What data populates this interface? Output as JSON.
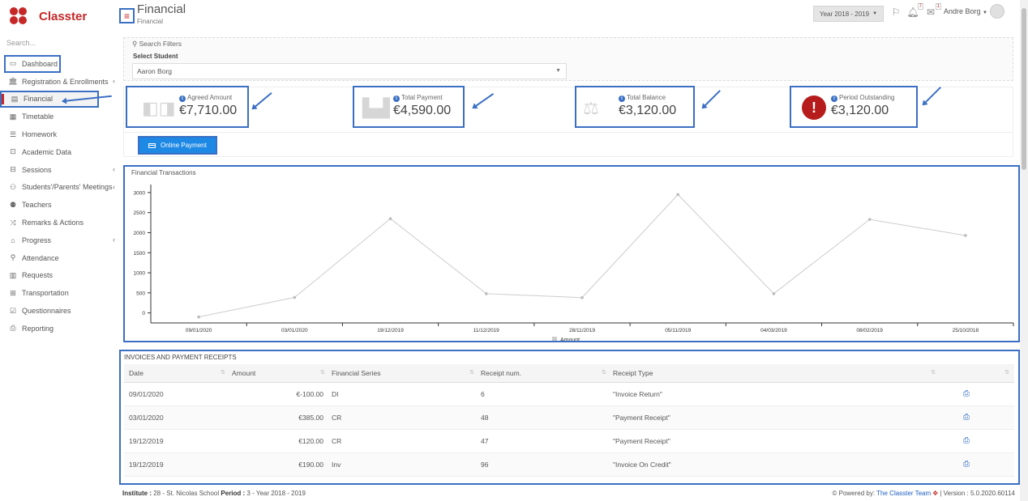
{
  "app": {
    "name": "Classter"
  },
  "sidebar": {
    "search_placeholder": "Search...",
    "items": [
      {
        "label": "Dashboard",
        "icon": "laptop-icon"
      },
      {
        "label": "Registration & Enrollments",
        "icon": "bank-icon"
      },
      {
        "label": "Financial",
        "icon": "money-icon"
      },
      {
        "label": "Timetable",
        "icon": "calendar-icon"
      },
      {
        "label": "Homework",
        "icon": "list-icon"
      },
      {
        "label": "Academic Data",
        "icon": "chart-icon"
      },
      {
        "label": "Sessions",
        "icon": "chalkboard-icon"
      },
      {
        "label": "Students'/Parents' Meetings",
        "icon": "user-clock-icon"
      },
      {
        "label": "Teachers",
        "icon": "users-icon"
      },
      {
        "label": "Remarks & Actions",
        "icon": "shuffle-icon"
      },
      {
        "label": "Progress",
        "icon": "graduation-cap-icon"
      },
      {
        "label": "Attendance",
        "icon": "user-x-icon"
      },
      {
        "label": "Requests",
        "icon": "document-icon"
      },
      {
        "label": "Transportation",
        "icon": "bus-icon"
      },
      {
        "label": "Questionnaires",
        "icon": "checkbox-icon"
      },
      {
        "label": "Reporting",
        "icon": "print-icon"
      }
    ]
  },
  "header": {
    "title": "Financial",
    "subtitle": "Financial",
    "year": "Year 2018 - 2019",
    "notifications_count": "7",
    "messages_count": "1",
    "user": "Andre Borg"
  },
  "filters": {
    "legend": "Search Filters",
    "label": "Select Student",
    "value": "Aaron Borg"
  },
  "stats": {
    "agreed": {
      "title": "Agreed Amount",
      "value": "€7,710.00"
    },
    "payment": {
      "title": "Total Payment",
      "value": "€4,590.00"
    },
    "balance": {
      "title": "Total Balance",
      "value": "€3,120.00"
    },
    "outstanding": {
      "title": "Period Outstanding",
      "value": "€3,120.00"
    }
  },
  "online_payment_label": "Online Payment",
  "chart_data": {
    "type": "line",
    "title": "Financial Transactions",
    "categories": [
      "09/01/2020",
      "03/01/2020",
      "19/12/2019",
      "11/12/2019",
      "28/11/2019",
      "05/11/2019",
      "04/03/2019",
      "08/02/2019",
      "25/10/2018"
    ],
    "series": [
      {
        "name": "Amount",
        "values": [
          -100,
          385,
          2350,
          480,
          380,
          2950,
          480,
          2330,
          1930
        ]
      }
    ],
    "yticks": [
      0,
      500,
      1000,
      1500,
      2000,
      2500,
      3000
    ],
    "ylim": [
      -250,
      3200
    ],
    "legend": "bottom",
    "color": "#cccccc"
  },
  "invoices": {
    "title": "INVOICES AND PAYMENT RECEIPTS",
    "columns": [
      "Date",
      "Amount",
      "Financial Series",
      "Receipt num.",
      "Receipt Type",
      ""
    ],
    "rows": [
      {
        "date": "09/01/2020",
        "amount": "€-100.00",
        "series": "DI",
        "num": "6",
        "type": "\"Invoice Return\""
      },
      {
        "date": "03/01/2020",
        "amount": "€385.00",
        "series": "CR",
        "num": "48",
        "type": "\"Payment Receipt\""
      },
      {
        "date": "19/12/2019",
        "amount": "€120.00",
        "series": "CR",
        "num": "47",
        "type": "\"Payment Receipt\""
      },
      {
        "date": "19/12/2019",
        "amount": "€190.00",
        "series": "Inv",
        "num": "96",
        "type": "\"Invoice On Credit\""
      }
    ]
  },
  "footer": {
    "institute_label": "Institute :",
    "institute": "28 - St. Nicolas School",
    "period_label": "Period :",
    "period": "3 - Year 2018 - 2019",
    "powered_by": "Powered by:",
    "team": "The Classter Team",
    "version": "| Version : 5.0.2020.60114"
  }
}
